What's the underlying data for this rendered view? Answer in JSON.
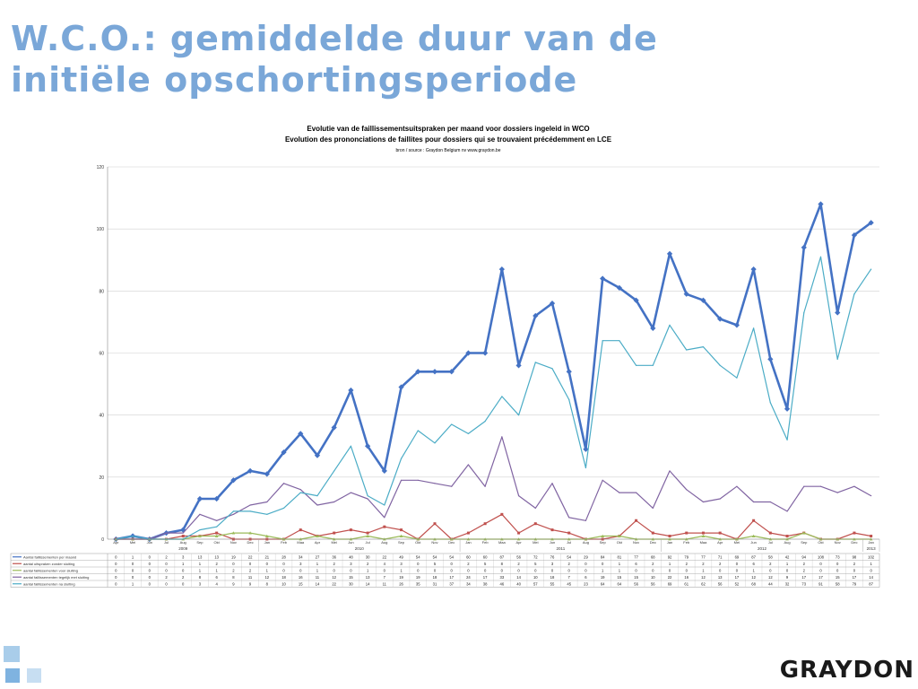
{
  "slide": {
    "title_line1": "W.C.O.: gemiddelde duur van de",
    "title_line2": "initiële opschortingsperiode",
    "logo": "GRAYDON"
  },
  "colors": {
    "title": "#7aa7d8",
    "series": [
      "#4472c4",
      "#c0504d",
      "#9bbb59",
      "#8064a2",
      "#4bacc6"
    ]
  },
  "chart_data": {
    "type": "line",
    "title": "Evolutie van de faillissementsuitspraken per maand voor dossiers ingeleid in WCO",
    "subtitle": "Evolution des prononciations de faillites pour dossiers qui se trouvaient précédemment en LCE",
    "source": "bron / source : Graydon Belgium nv    www.graydon.be",
    "ylim": [
      0,
      120
    ],
    "yticks": [
      0,
      20,
      40,
      60,
      80,
      100,
      120
    ],
    "months": [
      "Apr",
      "Mei",
      "Jun",
      "Jul",
      "Aug",
      "Sep",
      "Okt",
      "Nov",
      "Dec",
      "Jan",
      "Feb",
      "Maa",
      "Apr",
      "Mei",
      "Jun",
      "Jul",
      "Aug",
      "Sep",
      "Okt",
      "Nov",
      "Dec",
      "Jan",
      "Feb",
      "Maa",
      "Apr",
      "Mei",
      "Jun",
      "Jul",
      "Aug",
      "Sep",
      "Okt",
      "Nov",
      "Dec",
      "Jan",
      "Feb",
      "Maa",
      "Apr",
      "Mei",
      "Jun",
      "Jul",
      "Aug",
      "Sep",
      "Okt",
      "Nov",
      "Dec",
      "Jan"
    ],
    "years": [
      {
        "label": "2009",
        "start": 0,
        "end": 8
      },
      {
        "label": "2010",
        "start": 9,
        "end": 20
      },
      {
        "label": "2011",
        "start": 21,
        "end": 32
      },
      {
        "label": "2012",
        "start": 33,
        "end": 44
      },
      {
        "label": "2013",
        "start": 45,
        "end": 45
      }
    ],
    "series": [
      {
        "name": "Aantal faillissementen per maand",
        "color": "#4472c4",
        "width": 2.6,
        "values": [
          0,
          1,
          0,
          2,
          3,
          13,
          13,
          19,
          22,
          21,
          28,
          34,
          27,
          36,
          48,
          30,
          22,
          49,
          54,
          54,
          54,
          60,
          60,
          87,
          56,
          72,
          76,
          54,
          29,
          84,
          81,
          77,
          68,
          92,
          79,
          77,
          71,
          69,
          87,
          58,
          42,
          94,
          108,
          73,
          98,
          102
        ]
      },
      {
        "name": "aantal uitspraken zonder sluiting",
        "color": "#c0504d",
        "width": 1.2,
        "values": [
          0,
          0,
          0,
          0,
          1,
          1,
          2,
          0,
          0,
          0,
          0,
          3,
          1,
          2,
          3,
          2,
          4,
          3,
          0,
          5,
          0,
          2,
          5,
          8,
          2,
          5,
          3,
          2,
          0,
          0,
          1,
          6,
          2,
          1,
          2,
          2,
          2,
          0,
          6,
          2,
          1,
          2,
          0,
          0,
          2,
          1
        ]
      },
      {
        "name": "aantal faillissementen voor sluiting",
        "color": "#9bbb59",
        "width": 1.2,
        "values": [
          0,
          0,
          0,
          0,
          0,
          1,
          1,
          2,
          2,
          1,
          0,
          0,
          1,
          0,
          0,
          1,
          0,
          1,
          0,
          0,
          0,
          0,
          0,
          0,
          0,
          0,
          0,
          0,
          0,
          1,
          1,
          0,
          0,
          0,
          0,
          1,
          0,
          0,
          1,
          0,
          0,
          2,
          0,
          0,
          0,
          0
        ]
      },
      {
        "name": "aantal faillissementen tegelijk met sluiting",
        "color": "#8064a2",
        "width": 1.2,
        "values": [
          0,
          0,
          0,
          2,
          2,
          8,
          6,
          8,
          11,
          12,
          18,
          16,
          11,
          12,
          15,
          13,
          7,
          19,
          19,
          18,
          17,
          24,
          17,
          33,
          14,
          10,
          18,
          7,
          6,
          19,
          15,
          15,
          10,
          22,
          16,
          12,
          13,
          17,
          12,
          12,
          9,
          17,
          17,
          15,
          17,
          14
        ]
      },
      {
        "name": "aantal faillissementen na sluiting",
        "color": "#4bacc6",
        "width": 1.2,
        "values": [
          0,
          1,
          0,
          0,
          0,
          3,
          4,
          9,
          9,
          8,
          10,
          15,
          14,
          22,
          30,
          14,
          11,
          26,
          35,
          31,
          37,
          34,
          38,
          46,
          40,
          57,
          55,
          45,
          23,
          64,
          64,
          56,
          56,
          69,
          61,
          62,
          56,
          52,
          68,
          44,
          32,
          73,
          91,
          58,
          79,
          87
        ]
      }
    ]
  }
}
